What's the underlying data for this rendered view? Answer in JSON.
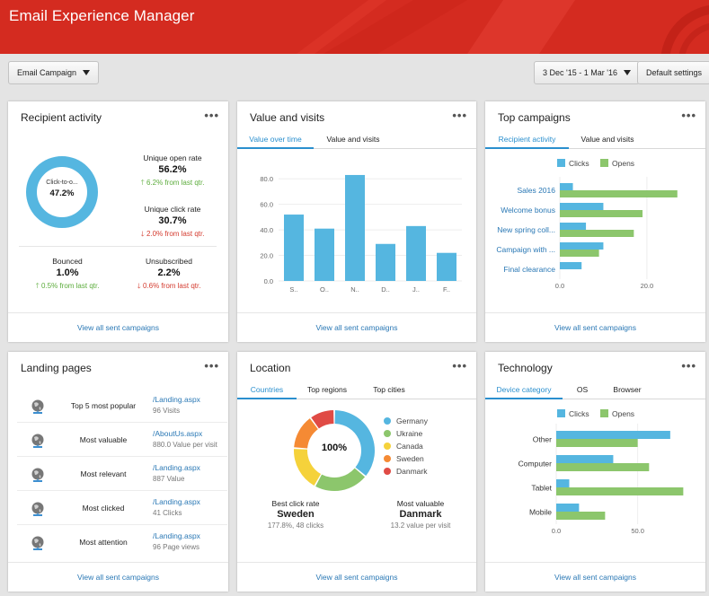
{
  "app": {
    "title": "Email Experience Manager"
  },
  "toolbar": {
    "campaign_select": "Email Campaign",
    "date_range": "3 Dec '15 - 1 Mar '16",
    "default_settings": "Default settings"
  },
  "colors": {
    "header": "#d42b20",
    "accent": "#2a8fce",
    "bar_blue": "#55b6e0",
    "bar_green": "#8cc66c"
  },
  "common": {
    "footer_link": "View all sent campaigns",
    "menu": "•••"
  },
  "recipient_activity": {
    "title": "Recipient activity",
    "donut_label": "Click-to-o...",
    "donut_value": "47.2%",
    "unique_open_rate": {
      "label": "Unique open rate",
      "value": "56.2%",
      "change": "6.2% from last qtr."
    },
    "unique_click_rate": {
      "label": "Unique click rate",
      "value": "30.7%",
      "change": "2.0% from last qtr."
    },
    "bounced": {
      "label": "Bounced",
      "value": "1.0%",
      "change": "0.5% from last qtr."
    },
    "unsubscribed": {
      "label": "Unsubscribed",
      "value": "2.2%",
      "change": "0.6% from last qtr."
    }
  },
  "value_visits": {
    "title": "Value and visits",
    "tabs": [
      "Value over time",
      "Value and visits"
    ]
  },
  "top_campaigns": {
    "title": "Top campaigns",
    "tabs": [
      "Recipient activity",
      "Value and visits"
    ]
  },
  "landing_pages": {
    "title": "Landing pages",
    "rows": [
      {
        "name": "Top 5 most popular",
        "link": "/Landing.aspx",
        "sub": "96 Visits"
      },
      {
        "name": "Most valuable",
        "link": "/AboutUs.aspx",
        "sub": "880.0 Value per visit"
      },
      {
        "name": "Most relevant",
        "link": "/Landing.aspx",
        "sub": "887 Value"
      },
      {
        "name": "Most clicked",
        "link": "/Landing.aspx",
        "sub": "41 Clicks"
      },
      {
        "name": "Most attention",
        "link": "/Landing.aspx",
        "sub": "96 Page views"
      }
    ]
  },
  "location": {
    "title": "Location",
    "tabs": [
      "Countries",
      "Top regions",
      "Top cities"
    ],
    "center": "100%",
    "best_click": {
      "label": "Best click rate",
      "country": "Sweden",
      "detail": "177.8%, 48 clicks"
    },
    "most_valuable": {
      "label": "Most valuable",
      "country": "Danmark",
      "detail": "13.2 value per visit"
    }
  },
  "technology": {
    "title": "Technology",
    "tabs": [
      "Device category",
      "OS",
      "Browser"
    ]
  },
  "chart_data": [
    {
      "id": "value_over_time",
      "type": "bar",
      "categories": [
        "S..",
        "O..",
        "N..",
        "D..",
        "J..",
        "F.."
      ],
      "values": [
        52,
        41,
        83,
        29,
        43,
        22
      ],
      "ylim": [
        0,
        90
      ],
      "yticks": [
        "0.0",
        "20.0",
        "40.0",
        "60.0",
        "80.0"
      ],
      "ytick_values": [
        0,
        20,
        40,
        60,
        80
      ]
    },
    {
      "id": "top_campaigns",
      "type": "bar",
      "orientation": "horizontal",
      "legend": [
        "Clicks",
        "Opens"
      ],
      "categories": [
        "Sales 2016",
        "Welcome bonus",
        "New spring coll...",
        "Campaign with ...",
        "Final clearance"
      ],
      "series": [
        {
          "name": "Clicks",
          "values": [
            3,
            10,
            6,
            10,
            5
          ]
        },
        {
          "name": "Opens",
          "values": [
            27,
            19,
            17,
            9,
            0
          ]
        }
      ],
      "xlim": [
        0,
        32
      ],
      "xticks": [
        "0.0",
        "20.0"
      ],
      "xtick_values": [
        0,
        20
      ]
    },
    {
      "id": "location_donut",
      "type": "pie",
      "labels": [
        "Germany",
        "Ukraine",
        "Canada",
        "Sweden",
        "Danmark"
      ],
      "values": [
        36,
        22,
        18,
        14,
        10
      ],
      "colors": [
        "#55b6e0",
        "#8cc66c",
        "#f5d23b",
        "#f58a34",
        "#e04b45"
      ]
    },
    {
      "id": "technology",
      "type": "bar",
      "orientation": "horizontal",
      "legend": [
        "Clicks",
        "Opens"
      ],
      "categories": [
        "Other",
        "Computer",
        "Tablet",
        "Mobile"
      ],
      "series": [
        {
          "name": "Clicks",
          "values": [
            70,
            35,
            8,
            14
          ]
        },
        {
          "name": "Opens",
          "values": [
            50,
            57,
            78,
            30
          ]
        }
      ],
      "xlim": [
        0,
        80
      ],
      "xticks": [
        "0.0",
        "50.0"
      ],
      "xtick_values": [
        0,
        50
      ]
    }
  ]
}
